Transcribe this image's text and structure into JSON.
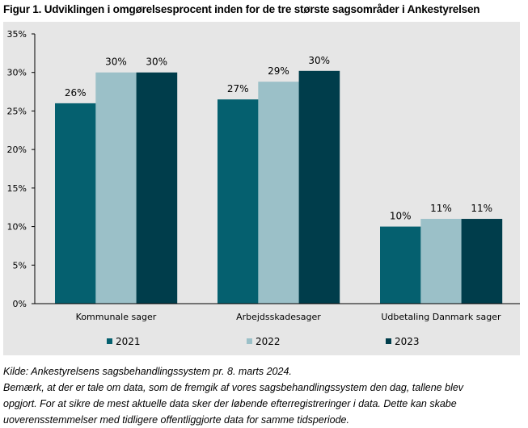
{
  "chart_data": {
    "type": "bar",
    "title": "Figur 1. Udviklingen i omgørelsesprocent inden for de tre største sagsområder i Ankestyrelsen",
    "categories": [
      "Kommunale sager",
      "Arbejdsskadesager",
      "Udbetaling Danmark sager"
    ],
    "series": [
      {
        "name": "2021",
        "color": "#05606f",
        "values": [
          26,
          26.5,
          10
        ],
        "labels": [
          "26%",
          "27%",
          "10%"
        ]
      },
      {
        "name": "2022",
        "color": "#9bc0c8",
        "values": [
          30,
          28.8,
          11
        ],
        "labels": [
          "30%",
          "29%",
          "11%"
        ]
      },
      {
        "name": "2023",
        "color": "#003d4b",
        "values": [
          30,
          30.2,
          11
        ],
        "labels": [
          "30%",
          "30%",
          "11%"
        ]
      }
    ],
    "xlabel": "",
    "ylabel": "",
    "ylim": [
      0,
      35
    ],
    "yticks": [
      0,
      5,
      10,
      15,
      20,
      25,
      30,
      35
    ],
    "ytick_labels": [
      "0%",
      "5%",
      "10%",
      "15%",
      "20%",
      "25%",
      "30%",
      "35%"
    ],
    "grid": false,
    "legend_position": "bottom",
    "background": "#e6e6e6"
  },
  "notes": [
    "Kilde: Ankestyrelsens sagsbehandlingssystem pr. 8. marts 2024.",
    "Bemærk, at der er tale om data, som de fremgik af vores sagsbehandlingssystem den dag, tallene blev",
    "opgjort. For at sikre de mest aktuelle data sker der løbende efterregistreringer i data. Dette kan skabe",
    "uoverensstemmelser med tidligere offentliggjorte data for samme tidsperiode."
  ]
}
